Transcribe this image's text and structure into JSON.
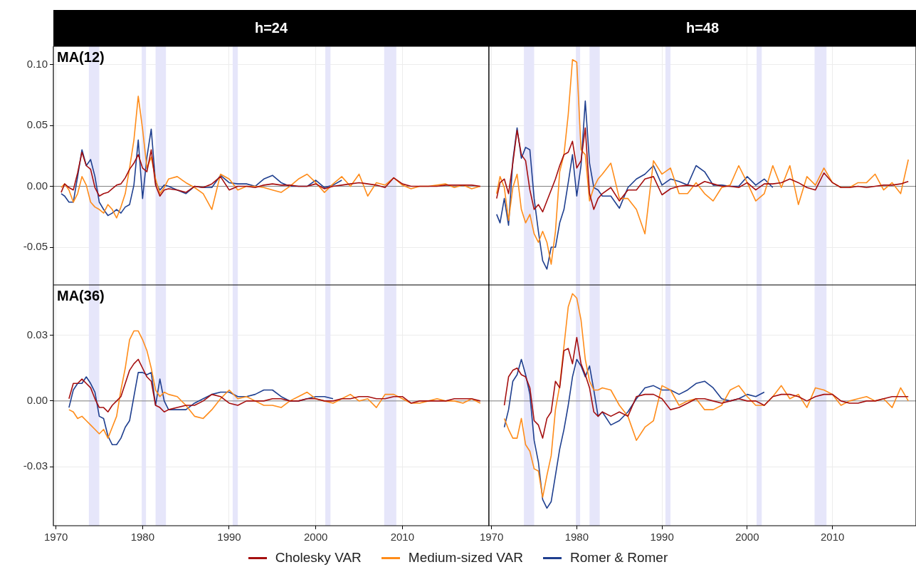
{
  "chart_data": [
    {
      "type": "line",
      "title": "h=24",
      "annotations": [
        "MA(12)"
      ],
      "tick_labels": "y",
      "grid": true,
      "legend": "bottom",
      "xlim": [
        1969.7,
        2020
      ],
      "xticks": [
        1970,
        1980,
        1990,
        2000,
        2010
      ],
      "ylim": [
        -0.081,
        0.115
      ],
      "yticks": [
        {
          "value": -0.05,
          "label": "-0.05"
        },
        {
          "value": 0,
          "label": "0.00"
        },
        {
          "value": 0.05,
          "label": "0.05"
        },
        {
          "value": 0.1,
          "label": "0.10"
        }
      ],
      "ref_lines": [
        {
          "axis": "y",
          "value": 0,
          "color": "#808080"
        }
      ],
      "bands": [
        {
          "axis": "x",
          "from": 1973.8,
          "to": 1975.0,
          "color": "#e6e6fa"
        },
        {
          "axis": "x",
          "from": 1979.9,
          "to": 1980.4,
          "color": "#e6e6fa"
        },
        {
          "axis": "x",
          "from": 1981.5,
          "to": 1982.7,
          "color": "#e6e6fa"
        },
        {
          "axis": "x",
          "from": 1990.4,
          "to": 1991.0,
          "color": "#e6e6fa"
        },
        {
          "axis": "x",
          "from": 2001.1,
          "to": 2001.7,
          "color": "#e6e6fa"
        },
        {
          "axis": "x",
          "from": 2007.9,
          "to": 2009.3,
          "color": "#e6e6fa"
        }
      ],
      "x": [
        1970.6,
        1971,
        1971.5,
        1972,
        1972.5,
        1973,
        1973.5,
        1974,
        1974.5,
        1975,
        1975.5,
        1976,
        1976.5,
        1977,
        1977.5,
        1978,
        1978.5,
        1979,
        1979.5,
        1980,
        1980.5,
        1981,
        1981.5,
        1982,
        1982.5,
        1983,
        1984,
        1985,
        1986,
        1987,
        1988,
        1989,
        1990,
        1991,
        1992,
        1993,
        1994,
        1995,
        1996,
        1997,
        1998,
        1999,
        2000,
        2001,
        2002,
        2003,
        2004,
        2005,
        2006,
        2007,
        2008,
        2009,
        2010,
        2011,
        2012,
        2013,
        2014,
        2015,
        2016,
        2017,
        2018,
        2019
      ],
      "series": [
        {
          "name": "Cholesky VAR",
          "color": "#a50f0f",
          "values": [
            -0.005,
            0.002,
            -0.001,
            -0.003,
            0.011,
            0.028,
            0.017,
            0.014,
            -0.001,
            -0.008,
            -0.006,
            -0.005,
            -0.002,
            0.001,
            0.002,
            0.007,
            0.014,
            0.019,
            0.026,
            0.015,
            0.012,
            0.03,
            0.001,
            -0.008,
            -0.003,
            -0.002,
            -0.003,
            -0.005,
            0,
            -0.001,
            0.002,
            0.008,
            -0.003,
            0,
            0,
            -0.001,
            0.001,
            0.002,
            0.001,
            0.001,
            0,
            0,
            0.002,
            -0.002,
            0,
            0.001,
            0.002,
            0.003,
            0.002,
            0.001,
            -0.001,
            0.007,
            0.002,
            0,
            0,
            0,
            0,
            0.001,
            0.001,
            0.001,
            0.001,
            0
          ]
        },
        {
          "name": "Medium-sized VAR",
          "color": "#ff8c1a",
          "values": [
            -0.001,
            0.002,
            -0.003,
            -0.013,
            -0.006,
            0.008,
            0.001,
            -0.013,
            -0.017,
            -0.019,
            -0.022,
            -0.015,
            -0.019,
            -0.026,
            -0.017,
            -0.006,
            0.015,
            0.038,
            0.074,
            0.047,
            0.015,
            0.024,
            0.006,
            -0.006,
            -0.001,
            0.006,
            0.008,
            0.003,
            -0.001,
            -0.006,
            -0.019,
            0.01,
            0.006,
            -0.003,
            0,
            0,
            -0.001,
            -0.003,
            -0.005,
            0,
            0.006,
            0.01,
            0.003,
            -0.005,
            0.002,
            0.008,
            0,
            0.01,
            -0.008,
            0.003,
            0.001,
            0.007,
            0.001,
            -0.002,
            0,
            0,
            0.001,
            0.002,
            -0.001,
            0.001,
            -0.002,
            0
          ]
        },
        {
          "name": "Romer & Romer",
          "color": "#1f3f8f",
          "values": [
            -0.006,
            -0.008,
            -0.013,
            -0.013,
            0.008,
            0.03,
            0.017,
            0.022,
            0.008,
            -0.013,
            -0.019,
            -0.024,
            -0.022,
            -0.019,
            -0.022,
            -0.017,
            -0.015,
            0.001,
            0.038,
            -0.01,
            0.024,
            0.047,
            0.003,
            -0.003,
            0.001,
            0,
            -0.003,
            -0.006,
            0,
            -0.001,
            -0.001,
            0.009,
            0.003,
            0.002,
            0.002,
            0,
            0.006,
            0.009,
            0.003,
            0,
            0,
            0,
            0.005,
            -0.001,
            0.001,
            0.005,
            null,
            null,
            null,
            null,
            null,
            null,
            null,
            null,
            null,
            null,
            null,
            null,
            null,
            null,
            null,
            null
          ]
        }
      ]
    },
    {
      "type": "line",
      "title": "h=48",
      "tick_labels": false,
      "grid": true,
      "xlim": [
        1969.7,
        2019.8
      ],
      "xticks": [
        1970,
        1980,
        1990,
        2000,
        2010
      ],
      "ylim": [
        -0.081,
        0.115
      ],
      "yticks": [
        -0.05,
        0,
        0.05,
        0.1
      ],
      "ref_lines": [
        {
          "axis": "y",
          "value": 0,
          "color": "#808080"
        }
      ],
      "bands": [
        {
          "axis": "x",
          "from": 1973.8,
          "to": 1975.0,
          "color": "#e6e6fa"
        },
        {
          "axis": "x",
          "from": 1979.9,
          "to": 1980.4,
          "color": "#e6e6fa"
        },
        {
          "axis": "x",
          "from": 1981.5,
          "to": 1982.7,
          "color": "#e6e6fa"
        },
        {
          "axis": "x",
          "from": 1990.4,
          "to": 1991.0,
          "color": "#e6e6fa"
        },
        {
          "axis": "x",
          "from": 2001.1,
          "to": 2001.7,
          "color": "#e6e6fa"
        },
        {
          "axis": "x",
          "from": 2007.9,
          "to": 2009.3,
          "color": "#e6e6fa"
        }
      ],
      "x": [
        1970.6,
        1971,
        1971.5,
        1972,
        1972.5,
        1973,
        1973.5,
        1974,
        1974.5,
        1975,
        1975.5,
        1976,
        1976.5,
        1977,
        1977.5,
        1978,
        1978.5,
        1979,
        1979.5,
        1980,
        1980.5,
        1981,
        1981.5,
        1982,
        1982.5,
        1983,
        1984,
        1985,
        1986,
        1987,
        1988,
        1989,
        1990,
        1991,
        1992,
        1993,
        1994,
        1995,
        1996,
        1997,
        1998,
        1999,
        2000,
        2001,
        2002,
        2003,
        2004,
        2005,
        2006,
        2007,
        2008,
        2009,
        2010,
        2011,
        2012,
        2013,
        2014,
        2015,
        2016,
        2017,
        2018,
        2018.9
      ],
      "series": [
        {
          "color": "#a50f0f",
          "values": [
            -0.01,
            0.003,
            0.006,
            -0.006,
            0.019,
            0.046,
            0.026,
            0.021,
            -0.003,
            -0.019,
            -0.015,
            -0.021,
            -0.012,
            -0.003,
            0.006,
            0.017,
            0.026,
            0.028,
            0.037,
            0.015,
            0.021,
            0.048,
            -0.006,
            -0.019,
            -0.01,
            -0.006,
            -0.001,
            -0.012,
            -0.003,
            -0.003,
            0.006,
            0.008,
            -0.007,
            -0.002,
            0,
            0.001,
            0,
            0.004,
            0.002,
            0,
            0,
            -0.001,
            0.003,
            -0.003,
            0.002,
            0.002,
            0.003,
            0.006,
            0.003,
            -0.001,
            -0.003,
            0.011,
            0.003,
            -0.001,
            -0.001,
            0,
            -0.001,
            0,
            0.001,
            0.001,
            0.002,
            0.004
          ]
        },
        {
          "color": "#ff8c1a",
          "values": [
            -0.006,
            0.008,
            -0.001,
            -0.028,
            -0.001,
            0.01,
            -0.019,
            -0.03,
            -0.023,
            -0.039,
            -0.046,
            -0.037,
            -0.046,
            -0.064,
            -0.037,
            0.012,
            0.026,
            0.059,
            0.104,
            0.102,
            0.03,
            0.026,
            -0.012,
            -0.001,
            0.006,
            0.01,
            0.019,
            -0.01,
            -0.01,
            -0.019,
            -0.039,
            0.021,
            0.01,
            0.015,
            -0.006,
            -0.006,
            0.003,
            -0.006,
            -0.012,
            -0.001,
            0.001,
            0.017,
            0.003,
            -0.012,
            -0.006,
            0.017,
            -0.001,
            0.017,
            -0.015,
            0.008,
            0.001,
            0.015,
            0.003,
            -0.001,
            -0.001,
            0.003,
            0.003,
            0.01,
            -0.003,
            0.003,
            -0.006,
            0.022
          ]
        },
        {
          "color": "#1f3f8f",
          "values": [
            -0.023,
            -0.03,
            -0.01,
            -0.032,
            0.021,
            0.048,
            0.023,
            0.032,
            0.03,
            -0.01,
            -0.037,
            -0.061,
            -0.068,
            -0.05,
            -0.05,
            -0.03,
            -0.019,
            0.003,
            0.026,
            -0.008,
            0.017,
            0.07,
            0.019,
            -0.001,
            -0.003,
            -0.008,
            -0.008,
            -0.018,
            -0.001,
            0.006,
            0.01,
            0.017,
            0.001,
            0.006,
            0.004,
            0.001,
            0.017,
            0.012,
            0.001,
            0.001,
            0,
            0,
            0.008,
            0.001,
            0.006,
            -0.001,
            null,
            null,
            null,
            null,
            null,
            null,
            null,
            null,
            null,
            null,
            null,
            null,
            null,
            null,
            null,
            null
          ]
        }
      ]
    },
    {
      "type": "line",
      "annotations": [
        "MA(36)"
      ],
      "grid": true,
      "xlim": [
        1969.7,
        2020
      ],
      "xticks": [
        1970,
        1980,
        1990,
        2000,
        2010
      ],
      "ylim": [
        -0.057,
        0.053
      ],
      "yticks": [
        {
          "value": -0.03,
          "label": "-0.03"
        },
        {
          "value": 0,
          "label": "0.00"
        },
        {
          "value": 0.03,
          "label": "0.03"
        }
      ],
      "ref_lines": [
        {
          "axis": "y",
          "value": 0,
          "color": "#808080"
        }
      ],
      "bands": [
        {
          "axis": "x",
          "from": 1973.8,
          "to": 1975.0,
          "color": "#e6e6fa"
        },
        {
          "axis": "x",
          "from": 1979.9,
          "to": 1980.4,
          "color": "#e6e6fa"
        },
        {
          "axis": "x",
          "from": 1981.5,
          "to": 1982.7,
          "color": "#e6e6fa"
        },
        {
          "axis": "x",
          "from": 1990.4,
          "to": 1991.0,
          "color": "#e6e6fa"
        },
        {
          "axis": "x",
          "from": 2001.1,
          "to": 2001.7,
          "color": "#e6e6fa"
        },
        {
          "axis": "x",
          "from": 2007.9,
          "to": 2009.3,
          "color": "#e6e6fa"
        }
      ],
      "x": [
        1971.5,
        1972,
        1972.5,
        1973,
        1973.5,
        1974,
        1974.5,
        1975,
        1975.5,
        1976,
        1976.5,
        1977,
        1977.5,
        1978,
        1978.5,
        1979,
        1979.5,
        1980,
        1980.5,
        1981,
        1981.5,
        1982,
        1982.5,
        1983,
        1984,
        1985,
        1986,
        1987,
        1988,
        1989,
        1990,
        1991,
        1992,
        1993,
        1994,
        1995,
        1996,
        1997,
        1998,
        1999,
        2000,
        2001,
        2002,
        2003,
        2004,
        2005,
        2006,
        2007,
        2008,
        2009,
        2010,
        2011,
        2012,
        2013,
        2014,
        2015,
        2016,
        2017,
        2018,
        2019
      ],
      "series": [
        {
          "color": "#a50f0f",
          "values": [
            0.001,
            0.008,
            0.008,
            0.01,
            0.008,
            0.006,
            0.001,
            -0.003,
            -0.003,
            -0.005,
            -0.002,
            0,
            0.002,
            0.008,
            0.014,
            0.017,
            0.019,
            0.015,
            0.011,
            0.009,
            -0.002,
            -0.003,
            -0.005,
            -0.004,
            -0.003,
            -0.002,
            -0.002,
            0,
            0.003,
            0.002,
            -0.001,
            -0.002,
            0,
            0,
            0,
            0.001,
            0.001,
            0,
            0,
            0.001,
            0.001,
            0,
            0,
            0.001,
            0.001,
            0.002,
            0.002,
            0.001,
            0.001,
            0.002,
            0.002,
            -0.001,
            0,
            0,
            0,
            0,
            0.001,
            0.001,
            0.001,
            0
          ]
        },
        {
          "color": "#ff8c1a",
          "values": [
            -0.004,
            -0.005,
            -0.008,
            -0.007,
            -0.009,
            -0.011,
            -0.013,
            -0.015,
            -0.013,
            -0.017,
            -0.012,
            -0.007,
            0.005,
            0.015,
            0.028,
            0.032,
            0.032,
            0.028,
            0.023,
            0.015,
            0.005,
            0.002,
            0.004,
            0.003,
            0.002,
            -0.002,
            -0.007,
            -0.008,
            -0.004,
            0.001,
            0.005,
            0.001,
            0.002,
            0,
            -0.002,
            -0.002,
            -0.003,
            0,
            0.002,
            0.004,
            0.001,
            0,
            -0.001,
            0.001,
            0.003,
            0,
            0.001,
            -0.003,
            0.003,
            0.003,
            0.001,
            -0.001,
            -0.001,
            0,
            0.001,
            0,
            0,
            -0.001,
            0.001,
            -0.001
          ]
        },
        {
          "color": "#1f3f8f",
          "values": [
            -0.003,
            0.005,
            0.008,
            0.008,
            0.011,
            0.008,
            0.004,
            -0.007,
            -0.008,
            -0.016,
            -0.02,
            -0.02,
            -0.017,
            -0.012,
            -0.009,
            0.002,
            0.013,
            0.013,
            0.012,
            0.013,
            -0.002,
            0.01,
            0,
            -0.004,
            -0.004,
            -0.004,
            -0.001,
            0.001,
            0.003,
            0.004,
            0.004,
            0.002,
            0.002,
            0.003,
            0.005,
            0.005,
            0.002,
            0,
            0,
            0.001,
            0.002,
            0.002,
            0.001,
            null,
            null,
            null,
            null,
            null,
            null,
            null,
            null,
            null,
            null,
            null,
            null,
            null,
            null,
            null,
            null,
            null
          ]
        }
      ]
    },
    {
      "type": "line",
      "tick_labels": "x",
      "grid": true,
      "xlim": [
        1969.7,
        2019.8
      ],
      "xticks": [
        1970,
        1980,
        1990,
        2000,
        2010
      ],
      "ylim": [
        -0.057,
        0.053
      ],
      "yticks": [
        -0.03,
        0,
        0.03
      ],
      "ref_lines": [
        {
          "axis": "y",
          "value": 0,
          "color": "#808080"
        }
      ],
      "bands": [
        {
          "axis": "x",
          "from": 1973.8,
          "to": 1975.0,
          "color": "#e6e6fa"
        },
        {
          "axis": "x",
          "from": 1979.9,
          "to": 1980.4,
          "color": "#e6e6fa"
        },
        {
          "axis": "x",
          "from": 1981.5,
          "to": 1982.7,
          "color": "#e6e6fa"
        },
        {
          "axis": "x",
          "from": 1990.4,
          "to": 1991.0,
          "color": "#e6e6fa"
        },
        {
          "axis": "x",
          "from": 2001.1,
          "to": 2001.7,
          "color": "#e6e6fa"
        },
        {
          "axis": "x",
          "from": 2007.9,
          "to": 2009.3,
          "color": "#e6e6fa"
        }
      ],
      "x": [
        1971.5,
        1972,
        1972.5,
        1973,
        1973.5,
        1974,
        1974.5,
        1975,
        1975.5,
        1976,
        1976.5,
        1977,
        1977.5,
        1978,
        1978.5,
        1979,
        1979.5,
        1980,
        1980.5,
        1981,
        1981.5,
        1982,
        1982.5,
        1983,
        1984,
        1985,
        1986,
        1987,
        1988,
        1989,
        1990,
        1991,
        1992,
        1993,
        1994,
        1995,
        1996,
        1997,
        1998,
        1999,
        2000,
        2001,
        2002,
        2003,
        2004,
        2005,
        2006,
        2007,
        2008,
        2009,
        2010,
        2011,
        2012,
        2013,
        2014,
        2015,
        2016,
        2017,
        2018,
        2018.9
      ],
      "series": [
        {
          "color": "#a50f0f",
          "values": [
            -0.002,
            0.011,
            0.014,
            0.015,
            0.012,
            0.011,
            0.006,
            -0.009,
            -0.011,
            -0.017,
            -0.008,
            -0.005,
            0.009,
            0.006,
            0.023,
            0.024,
            0.017,
            0.029,
            0.017,
            0.012,
            0.006,
            -0.005,
            -0.007,
            -0.005,
            -0.007,
            -0.005,
            -0.007,
            0.002,
            0.003,
            0.003,
            0.001,
            -0.004,
            -0.003,
            -0.001,
            0.001,
            0.001,
            0,
            -0.001,
            0,
            0.001,
            0,
            0,
            -0.002,
            0.002,
            0.003,
            0.003,
            0.002,
            0,
            0.002,
            0.003,
            0.003,
            0,
            -0.001,
            -0.001,
            0,
            0,
            0.001,
            0.002,
            0.002,
            0.002
          ]
        },
        {
          "color": "#ff8c1a",
          "values": [
            -0.008,
            -0.013,
            -0.017,
            -0.017,
            -0.008,
            -0.02,
            -0.023,
            -0.031,
            -0.032,
            -0.044,
            -0.034,
            -0.025,
            -0.004,
            0.007,
            0.025,
            0.043,
            0.049,
            0.047,
            0.037,
            0.019,
            0.009,
            0.005,
            0.005,
            0.006,
            0.005,
            -0.002,
            -0.007,
            -0.018,
            -0.012,
            -0.009,
            0.007,
            0.005,
            -0.002,
            0,
            0.001,
            -0.004,
            -0.004,
            -0.002,
            0.005,
            0.007,
            0.002,
            -0.002,
            -0.002,
            0.002,
            0.007,
            0.001,
            0.003,
            -0.003,
            0.006,
            0.005,
            0.003,
            -0.002,
            0,
            0.001,
            0.002,
            0,
            0.001,
            -0.003,
            0.006,
            0
          ]
        },
        {
          "color": "#1f3f8f",
          "values": [
            -0.012,
            -0.004,
            0.009,
            0.012,
            0.019,
            0.012,
            0.003,
            -0.018,
            -0.028,
            -0.045,
            -0.049,
            -0.046,
            -0.034,
            -0.022,
            -0.013,
            -0.002,
            0.011,
            0.019,
            0.016,
            0.011,
            0.016,
            0.005,
            -0.007,
            -0.005,
            -0.011,
            -0.009,
            -0.005,
            0.001,
            0.006,
            0.007,
            0.005,
            0.005,
            0.003,
            0.005,
            0.008,
            0.009,
            0.006,
            0.001,
            0,
            0.001,
            0.003,
            0.002,
            0.004,
            null,
            null,
            null,
            null,
            null,
            null,
            null,
            null,
            null,
            null,
            null,
            null,
            null,
            null,
            null,
            null,
            null
          ]
        }
      ]
    }
  ]
}
